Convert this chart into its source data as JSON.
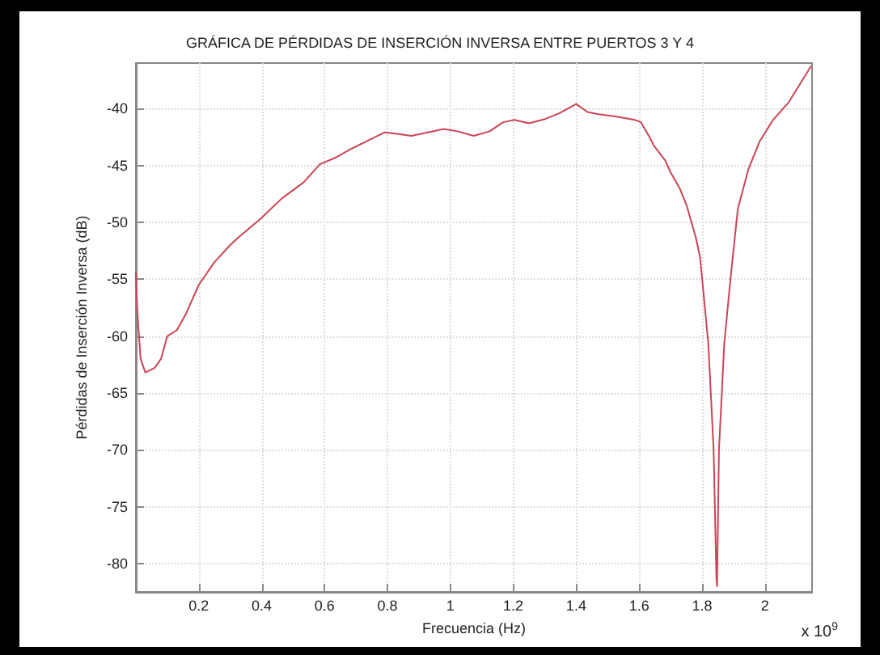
{
  "chart_data": {
    "type": "line",
    "title": "GRÁFICA DE PÉRDIDAS DE INSERCIÓN INVERSA ENTRE PUERTOS 3 Y 4",
    "xlabel": "Frecuencia (Hz)",
    "ylabel": "Pérdidas de Inserción Inversa (dB)",
    "annotations": [
      "x 10$^{9}$"
    ],
    "series": [
      {
        "color": "#cc4455",
        "x": [
          0,
          0.005,
          0.015,
          0.03,
          0.06,
          0.08,
          0.1,
          0.13,
          0.16,
          0.2,
          0.25,
          0.3,
          0.327,
          0.396,
          0.464,
          0.533,
          0.585,
          0.636,
          0.688,
          0.739,
          0.79,
          0.825,
          0.876,
          0.928,
          0.979,
          1.022,
          1.074,
          1.125,
          1.168,
          1.204,
          1.25,
          1.303,
          1.347,
          1.4,
          1.436,
          1.471,
          1.525,
          1.587,
          1.606,
          1.631,
          1.648,
          1.684,
          1.7,
          1.729,
          1.751,
          1.782,
          1.794,
          1.82,
          1.837,
          1.846,
          1.848,
          1.854,
          1.871,
          1.892,
          1.914,
          1.948,
          1.983,
          2.026,
          2.077,
          2.146
        ],
        "values": [
          -54.5,
          -58,
          -62,
          -63.2,
          -62.8,
          -62,
          -60,
          -59.5,
          -58,
          -55.5,
          -53.5,
          -52,
          -51.3,
          -49.7,
          -47.9,
          -46.5,
          -44.9,
          -44.3,
          -43.5,
          -42.8,
          -42.1,
          -42.2,
          -42.4,
          -42.1,
          -41.8,
          -42,
          -42.4,
          -42,
          -41.2,
          -41,
          -41.3,
          -40.9,
          -40.4,
          -39.6,
          -40.3,
          -40.5,
          -40.7,
          -41,
          -41.2,
          -42.4,
          -43.3,
          -44.6,
          -45.6,
          -47,
          -48.5,
          -51.5,
          -53.1,
          -60.6,
          -70,
          -81.4,
          -82,
          -70,
          -60.6,
          -54.6,
          -48.8,
          -45.3,
          -42.9,
          -41,
          -39.4,
          -36.3
        ]
      }
    ],
    "xlim": [
      0,
      2.15
    ],
    "ylim": [
      -82.5,
      -36
    ],
    "xticks": [
      0.2,
      0.4,
      0.6,
      0.8,
      1,
      1.2,
      1.4,
      1.6,
      1.8,
      2
    ],
    "yticks": [
      -80,
      -75,
      -70,
      -65,
      -60,
      -55,
      -50,
      -45,
      -40
    ],
    "grid": true,
    "marker": "none",
    "line_style": "solid"
  }
}
